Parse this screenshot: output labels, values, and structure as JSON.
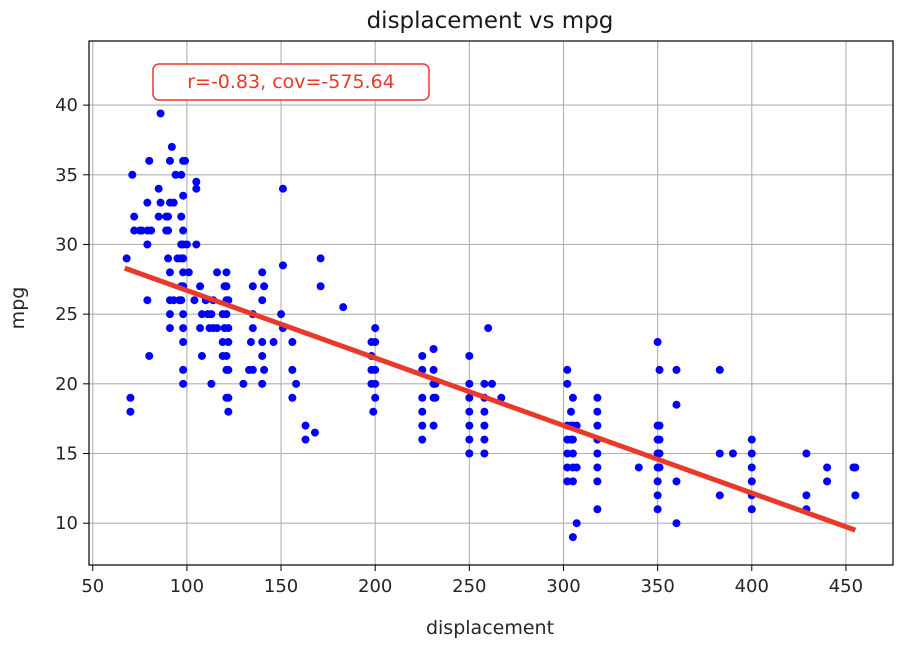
{
  "chart_data": {
    "type": "scatter",
    "title": "displacement vs mpg",
    "xlabel": "displacement",
    "ylabel": "mpg",
    "xlim": [
      48,
      475
    ],
    "ylim": [
      7,
      44.6
    ],
    "xticks": [
      50,
      100,
      150,
      200,
      250,
      300,
      350,
      400,
      450
    ],
    "yticks": [
      10,
      15,
      20,
      25,
      30,
      35,
      40
    ],
    "grid": true,
    "point_color": "#0000ff",
    "fit_color": "#e8392a",
    "annotation": {
      "text": "r=-0.83, cov=-575.64",
      "color": "#e8392a"
    },
    "fit_line": {
      "x": [
        67,
        455
      ],
      "y": [
        28.3,
        9.5
      ]
    },
    "points": [
      [
        68,
        29
      ],
      [
        70,
        19
      ],
      [
        70,
        18
      ],
      [
        71,
        35
      ],
      [
        72,
        32
      ],
      [
        72,
        31
      ],
      [
        75,
        31
      ],
      [
        76,
        31
      ],
      [
        79,
        33
      ],
      [
        79,
        31
      ],
      [
        79,
        26
      ],
      [
        79,
        30
      ],
      [
        80,
        36
      ],
      [
        80,
        22
      ],
      [
        81,
        31
      ],
      [
        85,
        32
      ],
      [
        85,
        34
      ],
      [
        86,
        33
      ],
      [
        86,
        39.4
      ],
      [
        89,
        32
      ],
      [
        89,
        31
      ],
      [
        90,
        29
      ],
      [
        90,
        31
      ],
      [
        90,
        32
      ],
      [
        91,
        33
      ],
      [
        91,
        36
      ],
      [
        91,
        28
      ],
      [
        91,
        26
      ],
      [
        91,
        25
      ],
      [
        91,
        24
      ],
      [
        92,
        37
      ],
      [
        93,
        33
      ],
      [
        93,
        26
      ],
      [
        94,
        35
      ],
      [
        95,
        29
      ],
      [
        96,
        26
      ],
      [
        97,
        27
      ],
      [
        97,
        29
      ],
      [
        97,
        30
      ],
      [
        97,
        32
      ],
      [
        97,
        26
      ],
      [
        97,
        35
      ],
      [
        98,
        29
      ],
      [
        98,
        30
      ],
      [
        98,
        31
      ],
      [
        98,
        33.5
      ],
      [
        98,
        25
      ],
      [
        98,
        27
      ],
      [
        98,
        36
      ],
      [
        98,
        28
      ],
      [
        98,
        24
      ],
      [
        98,
        21
      ],
      [
        98,
        20
      ],
      [
        98,
        23
      ],
      [
        99,
        36
      ],
      [
        100,
        30
      ],
      [
        101,
        28
      ],
      [
        104,
        26
      ],
      [
        105,
        30
      ],
      [
        105,
        34
      ],
      [
        105,
        34.5
      ],
      [
        107,
        27
      ],
      [
        107,
        24
      ],
      [
        108,
        25
      ],
      [
        108,
        22
      ],
      [
        110,
        26
      ],
      [
        111,
        25
      ],
      [
        112,
        24
      ],
      [
        113,
        20
      ],
      [
        113,
        25
      ],
      [
        114,
        26
      ],
      [
        114,
        24
      ],
      [
        116,
        28
      ],
      [
        116,
        24
      ],
      [
        119,
        25
      ],
      [
        119,
        22
      ],
      [
        119,
        23
      ],
      [
        120,
        24
      ],
      [
        120,
        27
      ],
      [
        121,
        25
      ],
      [
        121,
        27
      ],
      [
        121,
        22
      ],
      [
        121,
        28
      ],
      [
        121,
        26
      ],
      [
        121,
        21
      ],
      [
        121,
        19
      ],
      [
        122,
        24
      ],
      [
        122,
        18
      ],
      [
        122,
        19
      ],
      [
        122,
        21
      ],
      [
        122,
        23
      ],
      [
        122,
        26
      ],
      [
        130,
        20
      ],
      [
        133,
        21
      ],
      [
        134,
        23
      ],
      [
        135,
        27
      ],
      [
        135,
        25
      ],
      [
        135,
        21
      ],
      [
        135,
        24
      ],
      [
        140,
        22
      ],
      [
        140,
        28
      ],
      [
        140,
        26
      ],
      [
        140,
        23
      ],
      [
        140,
        20
      ],
      [
        141,
        21
      ],
      [
        141,
        27
      ],
      [
        146,
        23
      ],
      [
        150,
        25
      ],
      [
        151,
        34
      ],
      [
        151,
        28.5
      ],
      [
        151,
        24
      ],
      [
        156,
        21
      ],
      [
        156,
        19
      ],
      [
        156,
        23
      ],
      [
        158,
        20
      ],
      [
        163,
        17
      ],
      [
        163,
        16
      ],
      [
        168,
        16.5
      ],
      [
        171,
        29
      ],
      [
        171,
        27
      ],
      [
        183,
        25.5
      ],
      [
        198,
        23
      ],
      [
        198,
        22
      ],
      [
        198,
        20
      ],
      [
        198,
        21
      ],
      [
        199,
        18
      ],
      [
        200,
        24
      ],
      [
        200,
        23
      ],
      [
        200,
        21
      ],
      [
        200,
        20
      ],
      [
        200,
        19
      ],
      [
        225,
        22
      ],
      [
        225,
        19
      ],
      [
        225,
        18
      ],
      [
        225,
        21
      ],
      [
        225,
        17
      ],
      [
        225,
        16
      ],
      [
        231,
        20
      ],
      [
        231,
        22.5
      ],
      [
        231,
        21
      ],
      [
        231,
        19
      ],
      [
        231,
        17
      ],
      [
        232,
        20
      ],
      [
        232,
        19
      ],
      [
        250,
        22
      ],
      [
        250,
        19
      ],
      [
        250,
        18
      ],
      [
        250,
        17
      ],
      [
        250,
        16
      ],
      [
        250,
        15
      ],
      [
        250,
        20
      ],
      [
        258,
        20
      ],
      [
        258,
        19
      ],
      [
        258,
        18
      ],
      [
        258,
        17
      ],
      [
        258,
        16
      ],
      [
        258,
        15
      ],
      [
        260,
        24
      ],
      [
        262,
        20
      ],
      [
        267,
        19
      ],
      [
        302,
        21
      ],
      [
        302,
        20
      ],
      [
        302,
        17
      ],
      [
        302,
        16
      ],
      [
        302,
        15
      ],
      [
        302,
        14
      ],
      [
        302,
        13
      ],
      [
        304,
        18
      ],
      [
        304,
        17
      ],
      [
        304,
        16
      ],
      [
        305,
        9
      ],
      [
        305,
        16
      ],
      [
        305,
        19
      ],
      [
        305,
        17
      ],
      [
        305,
        14
      ],
      [
        305,
        15
      ],
      [
        305,
        13
      ],
      [
        307,
        10
      ],
      [
        307,
        17
      ],
      [
        307,
        14
      ],
      [
        318,
        19
      ],
      [
        318,
        18
      ],
      [
        318,
        16
      ],
      [
        318,
        15
      ],
      [
        318,
        14
      ],
      [
        318,
        13
      ],
      [
        318,
        11
      ],
      [
        318,
        17
      ],
      [
        340,
        14
      ],
      [
        350,
        23
      ],
      [
        350,
        17
      ],
      [
        350,
        16
      ],
      [
        350,
        15
      ],
      [
        350,
        14
      ],
      [
        350,
        13
      ],
      [
        350,
        12
      ],
      [
        350,
        11
      ],
      [
        351,
        21
      ],
      [
        351,
        15
      ],
      [
        351,
        16
      ],
      [
        351,
        14
      ],
      [
        351,
        17
      ],
      [
        360,
        21
      ],
      [
        360,
        18.5
      ],
      [
        360,
        13
      ],
      [
        360,
        10
      ],
      [
        383,
        21
      ],
      [
        383,
        15
      ],
      [
        383,
        12
      ],
      [
        390,
        15
      ],
      [
        400,
        16
      ],
      [
        400,
        15
      ],
      [
        400,
        14
      ],
      [
        400,
        13
      ],
      [
        400,
        12
      ],
      [
        400,
        11
      ],
      [
        429,
        15
      ],
      [
        429,
        12
      ],
      [
        429,
        11
      ],
      [
        440,
        14
      ],
      [
        440,
        13
      ],
      [
        454,
        14
      ],
      [
        455,
        14
      ],
      [
        455,
        12
      ]
    ]
  }
}
